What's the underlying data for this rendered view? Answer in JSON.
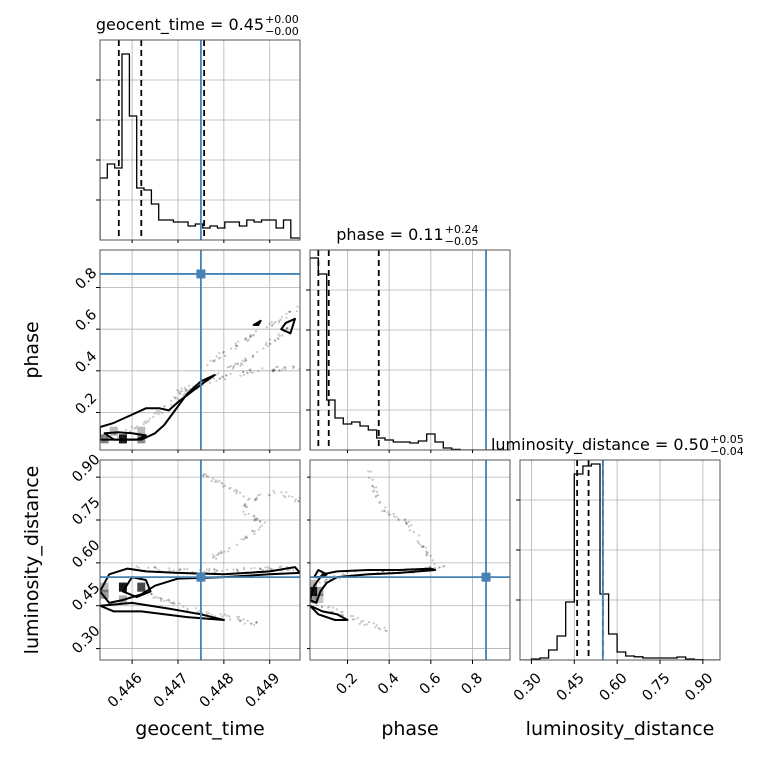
{
  "chart_data": {
    "type": "corner",
    "truth_color": "#4682b4",
    "truths": {
      "geocent_time": 0.4475,
      "phase": 0.865,
      "luminosity_distance": 0.55
    },
    "params": [
      {
        "name": "geocent_time",
        "label": "geocent_time",
        "range": [
          0.4453,
          0.44966
        ],
        "ticks": [
          0.446,
          0.447,
          0.448,
          0.449
        ],
        "tick_labels": [
          "0.446",
          "0.447",
          "0.448",
          "0.449"
        ],
        "title_main": "geocent_time = 0.45",
        "title_sup": "+0.00",
        "title_sub": "−0.00",
        "quantiles": [
          0.44571,
          0.4462,
          0.44757
        ],
        "hist": {
          "bins": [
            0.4453,
            0.44546,
            0.44562,
            0.44578,
            0.44594,
            0.4461,
            0.44626,
            0.44642,
            0.44658,
            0.44674,
            0.4469,
            0.44706,
            0.44722,
            0.44738,
            0.44754,
            0.4477,
            0.44786,
            0.44802,
            0.44818,
            0.44834,
            0.4485,
            0.44866,
            0.44882,
            0.44898,
            0.44914,
            0.4493,
            0.44946,
            0.44966
          ],
          "counts": [
            0.31,
            0.38,
            0.36,
            0.93,
            0.62,
            0.26,
            0.25,
            0.18,
            0.1,
            0.1,
            0.09,
            0.09,
            0.07,
            0.08,
            0.06,
            0.07,
            0.06,
            0.09,
            0.09,
            0.07,
            0.1,
            0.09,
            0.1,
            0.1,
            0.06,
            0.1,
            0.01
          ],
          "ymax": 1.0,
          "yticks": [
            0.2,
            0.4,
            0.6,
            0.8
          ]
        }
      },
      {
        "name": "phase",
        "label": "phase",
        "range": [
          0.02,
          0.98
        ],
        "ticks": [
          0.2,
          0.4,
          0.6,
          0.8
        ],
        "tick_labels": [
          "0.2",
          "0.4",
          "0.6",
          "0.8"
        ],
        "title_main": "phase = 0.11",
        "title_sup": "+0.24",
        "title_sub": "−0.05",
        "quantiles": [
          0.06,
          0.11,
          0.35
        ],
        "hist": {
          "bins": [
            0.02,
            0.06,
            0.1,
            0.14,
            0.18,
            0.22,
            0.26,
            0.3,
            0.34,
            0.38,
            0.42,
            0.46,
            0.5,
            0.54,
            0.58,
            0.62,
            0.66,
            0.7,
            0.74,
            0.98
          ],
          "counts": [
            0.96,
            0.88,
            0.25,
            0.16,
            0.13,
            0.14,
            0.12,
            0.1,
            0.06,
            0.05,
            0.04,
            0.04,
            0.035,
            0.045,
            0.08,
            0.04,
            0.01,
            0.003,
            0.0
          ],
          "ymax": 1.0,
          "yticks": [
            0.2,
            0.4,
            0.6,
            0.8
          ]
        }
      },
      {
        "name": "luminosity_distance",
        "label": "luminosity_distance",
        "range": [
          0.26,
          0.96
        ],
        "ticks": [
          0.3,
          0.45,
          0.6,
          0.75,
          0.9
        ],
        "tick_labels": [
          "0.30",
          "0.45",
          "0.60",
          "0.75",
          "0.90"
        ],
        "title_main": "luminosity_distance = 0.50",
        "title_sup": "+0.05",
        "title_sub": "−0.04",
        "quantiles": [
          0.46,
          0.5,
          0.55
        ],
        "hist": {
          "bins": [
            0.26,
            0.3,
            0.33,
            0.36,
            0.39,
            0.42,
            0.45,
            0.48,
            0.51,
            0.54,
            0.57,
            0.6,
            0.63,
            0.66,
            0.69,
            0.72,
            0.75,
            0.78,
            0.81,
            0.84,
            0.87,
            0.9,
            0.96
          ],
          "counts": [
            0.0,
            0.005,
            0.01,
            0.05,
            0.12,
            0.29,
            0.93,
            0.97,
            0.98,
            0.33,
            0.13,
            0.04,
            0.02,
            0.016,
            0.01,
            0.01,
            0.01,
            0.01,
            0.015,
            0.005,
            0.002,
            0.0
          ],
          "ymax": 1.0,
          "yticks": [
            0.3,
            0.55,
            0.8
          ]
        }
      }
    ],
    "pairs": [
      {
        "x": "geocent_time",
        "y": "phase",
        "tracks": [
          [
            [
              0.4453,
              0.07
            ],
            [
              0.4458,
              0.1
            ],
            [
              0.4463,
              0.15
            ],
            [
              0.4468,
              0.24
            ],
            [
              0.4472,
              0.3
            ],
            [
              0.4476,
              0.35
            ],
            [
              0.4479,
              0.39
            ],
            [
              0.4484,
              0.44
            ],
            [
              0.4488,
              0.5
            ],
            [
              0.4492,
              0.56
            ],
            [
              0.44955,
              0.63
            ]
          ],
          [
            [
              0.4476,
              0.43
            ],
            [
              0.4481,
              0.5
            ],
            [
              0.4485,
              0.55
            ],
            [
              0.4489,
              0.61
            ],
            [
              0.44935,
              0.66
            ],
            [
              0.4496,
              0.7
            ]
          ],
          [
            [
              0.447,
              0.3
            ],
            [
              0.4475,
              0.34
            ],
            [
              0.448,
              0.37
            ],
            [
              0.4486,
              0.4
            ],
            [
              0.4492,
              0.41
            ],
            [
              0.44966,
              0.42
            ]
          ]
        ],
        "contours": [
          [
            [
              0.4453,
              0.13
            ],
            [
              0.4456,
              0.15
            ],
            [
              0.446,
              0.19
            ],
            [
              0.4463,
              0.22
            ],
            [
              0.4466,
              0.22
            ],
            [
              0.4468,
              0.21
            ],
            [
              0.447,
              0.25
            ],
            [
              0.4473,
              0.3
            ],
            [
              0.4476,
              0.35
            ],
            [
              0.4478,
              0.38
            ],
            [
              0.4475,
              0.35
            ],
            [
              0.4472,
              0.29
            ],
            [
              0.4469,
              0.2
            ],
            [
              0.4467,
              0.14
            ],
            [
              0.4465,
              0.1
            ],
            [
              0.4462,
              0.07
            ],
            [
              0.4453,
              0.07
            ]
          ],
          [
            [
              0.4454,
              0.1
            ],
            [
              0.4457,
              0.105
            ],
            [
              0.446,
              0.1
            ],
            [
              0.4463,
              0.09
            ],
            [
              0.4461,
              0.07
            ],
            [
              0.4456,
              0.07
            ],
            [
              0.4454,
              0.1
            ]
          ],
          [
            [
              0.44945,
              0.58
            ],
            [
              0.44955,
              0.65
            ],
            [
              0.44935,
              0.63
            ],
            [
              0.44925,
              0.6
            ],
            [
              0.44945,
              0.58
            ]
          ],
          [
            [
              0.44865,
              0.62
            ],
            [
              0.4488,
              0.64
            ],
            [
              0.44875,
              0.62
            ],
            [
              0.44865,
              0.62
            ]
          ]
        ],
        "blocks": [
          [
            0.4458,
            0.0735,
            1.0
          ],
          [
            0.4454,
            0.0735,
            0.5
          ],
          [
            0.4462,
            0.0735,
            0.5
          ],
          [
            0.4456,
            0.11,
            0.3
          ],
          [
            0.4462,
            0.11,
            0.3
          ]
        ]
      },
      {
        "x": "geocent_time",
        "y": "luminosity_distance",
        "tracks": [
          [
            [
              0.4461,
              0.58
            ],
            [
              0.4466,
              0.575
            ],
            [
              0.4472,
              0.57
            ],
            [
              0.4478,
              0.57
            ],
            [
              0.4485,
              0.575
            ],
            [
              0.4491,
              0.58
            ],
            [
              0.44955,
              0.58
            ]
          ],
          [
            [
              0.4462,
              0.5
            ],
            [
              0.4467,
              0.47
            ],
            [
              0.4472,
              0.44
            ],
            [
              0.4478,
              0.42
            ],
            [
              0.4484,
              0.4
            ],
            [
              0.4488,
              0.38
            ]
          ],
          [
            [
              0.4478,
              0.62
            ],
            [
              0.4484,
              0.68
            ],
            [
              0.4489,
              0.74
            ],
            [
              0.44835,
              0.78
            ],
            [
              0.4486,
              0.82
            ],
            [
              0.4491,
              0.85
            ],
            [
              0.44966,
              0.82
            ]
          ],
          [
            [
              0.4474,
              0.92
            ],
            [
              0.4479,
              0.88
            ],
            [
              0.4484,
              0.84
            ]
          ]
        ],
        "contours": [
          [
            [
              0.4453,
              0.5
            ],
            [
              0.4455,
              0.56
            ],
            [
              0.4459,
              0.58
            ],
            [
              0.4463,
              0.57
            ],
            [
              0.447,
              0.565
            ],
            [
              0.448,
              0.56
            ],
            [
              0.449,
              0.57
            ],
            [
              0.44955,
              0.585
            ],
            [
              0.44966,
              0.565
            ],
            [
              0.449,
              0.56
            ],
            [
              0.448,
              0.55
            ],
            [
              0.447,
              0.545
            ],
            [
              0.4465,
              0.52
            ],
            [
              0.4462,
              0.49
            ],
            [
              0.4458,
              0.47
            ],
            [
              0.4455,
              0.46
            ],
            [
              0.4453,
              0.5
            ]
          ],
          [
            [
              0.4453,
              0.45
            ],
            [
              0.446,
              0.46
            ],
            [
              0.4468,
              0.44
            ],
            [
              0.4475,
              0.42
            ],
            [
              0.448,
              0.4
            ],
            [
              0.4472,
              0.41
            ],
            [
              0.4462,
              0.43
            ],
            [
              0.4456,
              0.43
            ],
            [
              0.4453,
              0.45
            ]
          ],
          [
            [
              0.4458,
              0.5
            ],
            [
              0.446,
              0.55
            ],
            [
              0.4463,
              0.54
            ],
            [
              0.4464,
              0.5
            ],
            [
              0.4461,
              0.48
            ],
            [
              0.4458,
              0.5
            ]
          ]
        ],
        "blocks": [
          [
            0.4458,
            0.515,
            1.0
          ],
          [
            0.4462,
            0.515,
            0.8
          ],
          [
            0.4454,
            0.49,
            0.45
          ],
          [
            0.4458,
            0.47,
            0.35
          ],
          [
            0.4454,
            0.515,
            0.3
          ]
        ]
      },
      {
        "x": "phase",
        "y": "luminosity_distance",
        "tracks": [
          [
            [
              0.02,
              0.5
            ],
            [
              0.1,
              0.54
            ],
            [
              0.2,
              0.56
            ],
            [
              0.3,
              0.565
            ],
            [
              0.45,
              0.57
            ],
            [
              0.6,
              0.58
            ],
            [
              0.68,
              0.585
            ]
          ],
          [
            [
              0.62,
              0.59
            ],
            [
              0.58,
              0.64
            ],
            [
              0.54,
              0.69
            ],
            [
              0.48,
              0.74
            ],
            [
              0.38,
              0.78
            ],
            [
              0.34,
              0.84
            ],
            [
              0.3,
              0.92
            ]
          ],
          [
            [
              0.04,
              0.46
            ],
            [
              0.15,
              0.43
            ],
            [
              0.25,
              0.4
            ],
            [
              0.4,
              0.36
            ]
          ]
        ],
        "contours": [
          [
            [
              0.02,
              0.47
            ],
            [
              0.04,
              0.52
            ],
            [
              0.08,
              0.56
            ],
            [
              0.15,
              0.57
            ],
            [
              0.3,
              0.575
            ],
            [
              0.45,
              0.575
            ],
            [
              0.6,
              0.58
            ],
            [
              0.62,
              0.575
            ],
            [
              0.45,
              0.565
            ],
            [
              0.3,
              0.56
            ],
            [
              0.15,
              0.55
            ],
            [
              0.1,
              0.53
            ],
            [
              0.07,
              0.5
            ],
            [
              0.05,
              0.46
            ],
            [
              0.02,
              0.47
            ]
          ],
          [
            [
              0.02,
              0.45
            ],
            [
              0.08,
              0.43
            ],
            [
              0.15,
              0.42
            ],
            [
              0.2,
              0.4
            ],
            [
              0.14,
              0.4
            ],
            [
              0.06,
              0.42
            ],
            [
              0.02,
              0.45
            ]
          ],
          [
            [
              0.04,
              0.55
            ],
            [
              0.06,
              0.575
            ],
            [
              0.1,
              0.56
            ],
            [
              0.08,
              0.55
            ],
            [
              0.04,
              0.55
            ]
          ]
        ],
        "blocks": [
          [
            0.035,
            0.5,
            1.0
          ],
          [
            0.035,
            0.475,
            0.45
          ],
          [
            0.065,
            0.5,
            0.4
          ],
          [
            0.035,
            0.525,
            0.3
          ],
          [
            0.065,
            0.475,
            0.25
          ]
        ]
      }
    ]
  }
}
